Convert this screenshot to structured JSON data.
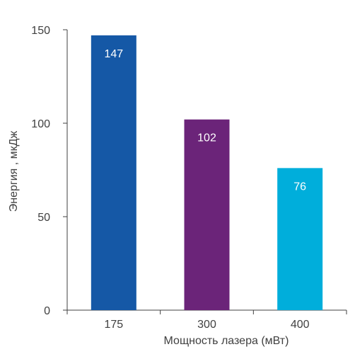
{
  "chart_data": {
    "type": "bar",
    "categories": [
      "175",
      "300",
      "400"
    ],
    "values": [
      147,
      102,
      76
    ],
    "value_labels": [
      "147",
      "102",
      "76"
    ],
    "colors": [
      "#1558a6",
      "#6b2479",
      "#00aedb"
    ],
    "xlabel": "Мощность лазера (мВт)",
    "ylabel": "Энергия , мкДж",
    "ylim": [
      0,
      150
    ],
    "yticks": [
      {
        "value": 0,
        "label": "0"
      },
      {
        "value": 50,
        "label": "50"
      },
      {
        "value": 100,
        "label": "100"
      },
      {
        "value": 150,
        "label": "150"
      }
    ],
    "grid": false,
    "legend": "none",
    "text_color": "#404040",
    "label_color": "#ffffff",
    "axis_color": "#404040"
  }
}
